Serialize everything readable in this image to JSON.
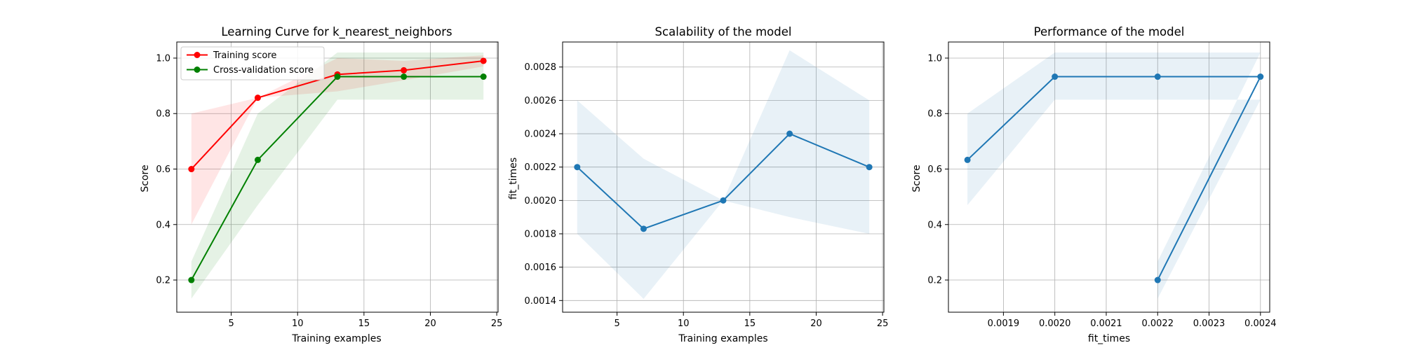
{
  "chart_data": [
    {
      "type": "line",
      "title": "Learning Curve for k_nearest_neighbors",
      "xlabel": "Training examples",
      "ylabel": "Score",
      "xlim": [
        0.9,
        25.1
      ],
      "ylim": [
        0.084,
        1.058
      ],
      "grid": true,
      "legend": {
        "placement": "top-left",
        "entries": [
          "Training score",
          "Cross-validation score"
        ]
      },
      "xticks": [
        "5",
        "10",
        "15",
        "20",
        "25"
      ],
      "yticks": [
        "0.2",
        "0.4",
        "0.6",
        "0.8",
        "1.0"
      ],
      "x": [
        2,
        7,
        13,
        18,
        24
      ],
      "series": [
        {
          "name": "Training score",
          "color": "#ff0000",
          "values": [
            0.6,
            0.857,
            0.941,
            0.956,
            0.99
          ],
          "band_lower": [
            0.4,
            0.857,
            0.88,
            0.92,
            0.97
          ],
          "band_upper": [
            0.8,
            0.857,
            1.0,
            0.99,
            1.01
          ]
        },
        {
          "name": "Cross-validation score",
          "color": "#008000",
          "values": [
            0.2,
            0.633,
            0.933,
            0.933,
            0.933
          ],
          "band_lower": [
            0.133,
            0.47,
            0.85,
            0.85,
            0.85
          ],
          "band_upper": [
            0.267,
            0.8,
            1.02,
            1.02,
            1.02
          ]
        }
      ]
    },
    {
      "type": "line",
      "title": "Scalability of the model",
      "xlabel": "Training examples",
      "ylabel": "fit_times",
      "xlim": [
        0.9,
        25.1
      ],
      "ylim": [
        0.00133,
        0.00295
      ],
      "grid": true,
      "xticks": [
        "5",
        "10",
        "15",
        "20",
        "25"
      ],
      "yticks": [
        "0.0014",
        "0.0016",
        "0.0018",
        "0.0020",
        "0.0022",
        "0.0024",
        "0.0026",
        "0.0028"
      ],
      "x": [
        2,
        7,
        13,
        18,
        24
      ],
      "series": [
        {
          "color": "#1f77b4",
          "values": [
            0.0022,
            0.00183,
            0.002,
            0.0024,
            0.0022
          ],
          "band_lower": [
            0.0018,
            0.00141,
            0.002,
            0.0019,
            0.0018
          ],
          "band_upper": [
            0.0026,
            0.00225,
            0.002,
            0.0029,
            0.0026
          ]
        }
      ]
    },
    {
      "type": "line",
      "title": "Performance of the model",
      "xlabel": "fit_times",
      "ylabel": "Score",
      "xlim": [
        0.001793,
        0.002418
      ],
      "ylim": [
        0.084,
        1.058
      ],
      "grid": true,
      "xticks": [
        "0.0019",
        "0.0020",
        "0.0021",
        "0.0022",
        "0.0023",
        "0.0024"
      ],
      "yticks": [
        "0.2",
        "0.4",
        "0.6",
        "0.8",
        "1.0"
      ],
      "x": [
        0.00183,
        0.002,
        0.0022,
        0.0024,
        0.0022
      ],
      "series": [
        {
          "color": "#1f77b4",
          "values": [
            0.633,
            0.933,
            0.933,
            0.933,
            0.2
          ],
          "band_lower": [
            0.47,
            0.85,
            0.85,
            0.85,
            0.133
          ],
          "band_upper": [
            0.8,
            1.02,
            1.02,
            1.02,
            0.267
          ]
        }
      ]
    }
  ]
}
